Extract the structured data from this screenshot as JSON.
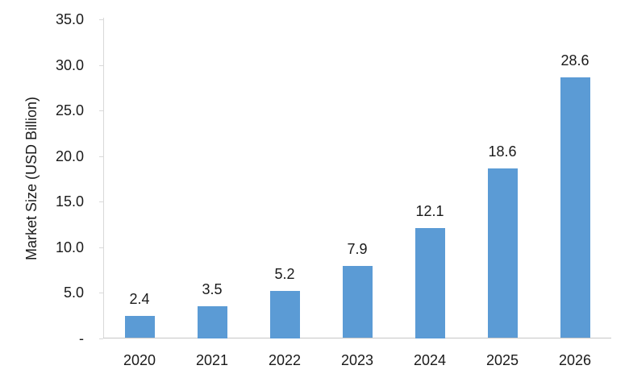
{
  "chart_data": {
    "type": "bar",
    "title": "",
    "xlabel": "",
    "ylabel": "Market Size (USD Billion)",
    "categories": [
      "2020",
      "2021",
      "2022",
      "2023",
      "2024",
      "2025",
      "2026"
    ],
    "values": [
      2.4,
      3.5,
      5.2,
      7.9,
      12.1,
      18.6,
      28.6
    ],
    "data_labels": [
      "2.4",
      "3.5",
      "5.2",
      "7.9",
      "12.1",
      "18.6",
      "28.6"
    ],
    "ylim": [
      0,
      35
    ],
    "ytick_step": 5,
    "ytick_labels": [
      "35.0",
      "30.0",
      "25.0",
      "20.0",
      "15.0",
      "10.0",
      "5.0",
      "-"
    ],
    "grid": false,
    "legend": "none",
    "colors": {
      "bar": "#5b9bd5",
      "y_axis_line": "#d9d9d9",
      "x_axis_line": "#c6c6c6",
      "tick_mark": "#d9d9d9",
      "text": "#1a1a1a",
      "background": "#ffffff"
    }
  }
}
